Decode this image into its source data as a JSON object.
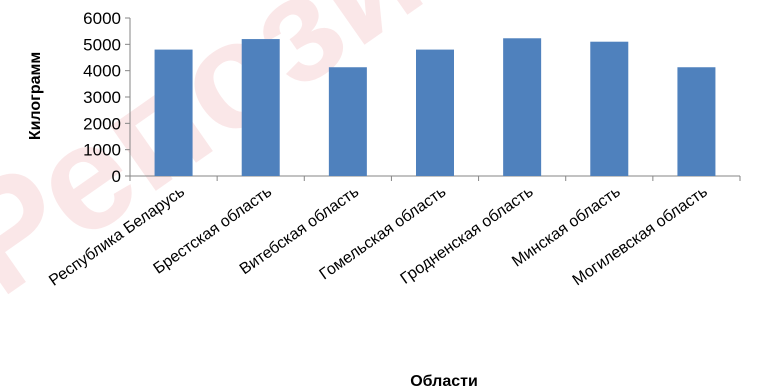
{
  "chart_data": {
    "type": "bar",
    "categories": [
      "Республика Беларусь",
      "Брестская область",
      "Витебская область",
      "Гомельская область",
      "Гродненская область",
      "Минская область",
      "Могилевская область"
    ],
    "values": [
      4800,
      5200,
      4130,
      4800,
      5230,
      5100,
      4130
    ],
    "xlabel": "Области",
    "ylabel": "Килограмм",
    "ylim": [
      0,
      6000
    ],
    "yticks": [
      0,
      1000,
      2000,
      3000,
      4000,
      5000,
      6000
    ],
    "grid": false,
    "legend": "none",
    "bar_color": "#4f81bd",
    "watermark": "Репозиторий"
  }
}
